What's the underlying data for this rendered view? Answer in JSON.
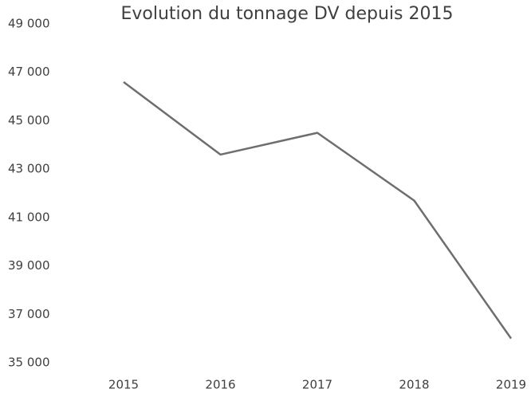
{
  "chart_data": {
    "type": "line",
    "title": "Evolution du tonnage DV depuis 2015",
    "categories": [
      "2015",
      "2016",
      "2017",
      "2018",
      "2019"
    ],
    "series": [
      {
        "name": "Tonnage DV",
        "color": "#6e6e6e",
        "values": [
          46600,
          43600,
          44500,
          41700,
          36000
        ]
      }
    ],
    "ylim": [
      35000,
      49000
    ],
    "yticks": [
      {
        "value": 35000,
        "label": "35 000"
      },
      {
        "value": 37000,
        "label": "37 000"
      },
      {
        "value": 39000,
        "label": "39 000"
      },
      {
        "value": 41000,
        "label": "41 000"
      },
      {
        "value": 43000,
        "label": "43 000"
      },
      {
        "value": 45000,
        "label": "45 000"
      },
      {
        "value": 47000,
        "label": "47 000"
      },
      {
        "value": 49000,
        "label": "49 000"
      }
    ],
    "grid": false
  }
}
